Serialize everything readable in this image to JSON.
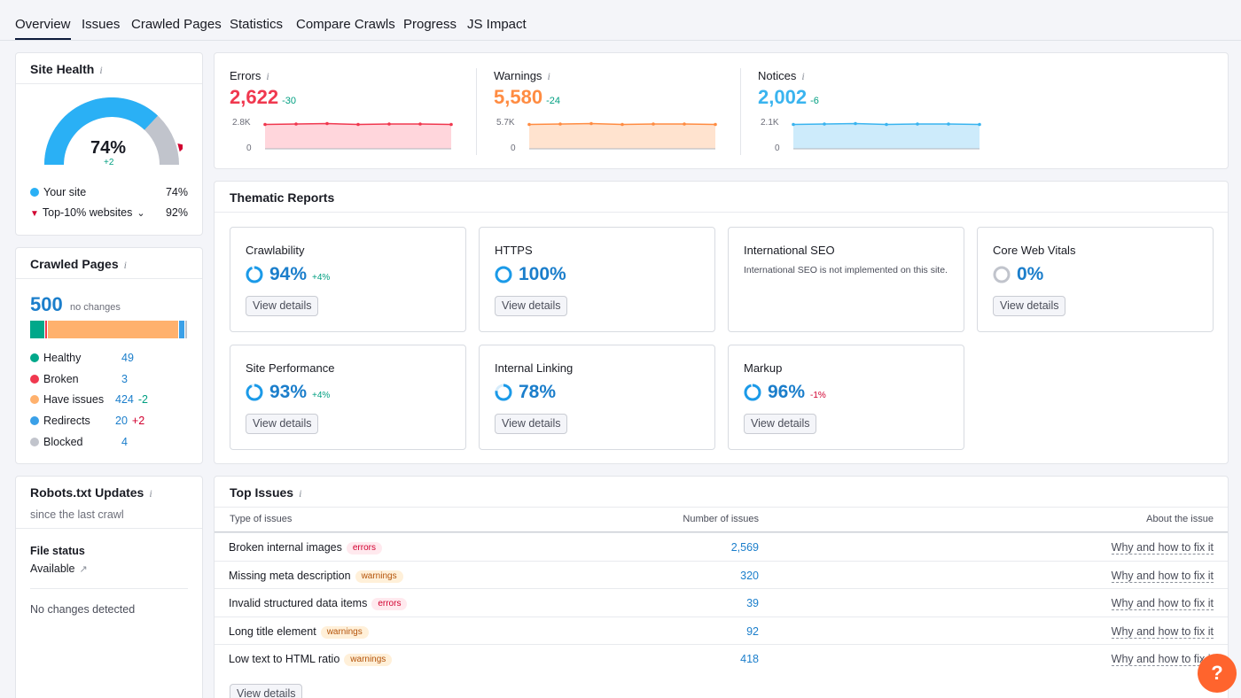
{
  "tabs": [
    "Overview",
    "Issues",
    "Crawled Pages",
    "Statistics",
    "Compare Crawls",
    "Progress",
    "JS Impact"
  ],
  "site_health": {
    "title": "Site Health",
    "percent": "74%",
    "delta": "+2",
    "gauge_value": 0.74,
    "top10_value": 0.92,
    "legend": [
      {
        "label": "Your site",
        "value": "74%"
      },
      {
        "label": "Top-10% websites",
        "value": "92%"
      }
    ]
  },
  "crawled_pages": {
    "title": "Crawled Pages",
    "total": "500",
    "note": "no changes",
    "rows": [
      {
        "label": "Healthy",
        "value": "49",
        "delta": "",
        "color": "#00a88a",
        "count": 49
      },
      {
        "label": "Broken",
        "value": "3",
        "delta": "",
        "color": "#f0384f",
        "count": 3
      },
      {
        "label": "Have issues",
        "value": "424",
        "delta": "-2",
        "color": "#ffb16d",
        "count": 424
      },
      {
        "label": "Redirects",
        "value": "20",
        "delta": "+2",
        "color": "#3aa0e8",
        "count": 20
      },
      {
        "label": "Blocked",
        "value": "4",
        "delta": "",
        "color": "#c1c4cc",
        "count": 4
      }
    ]
  },
  "robots": {
    "title": "Robots.txt Updates",
    "subtitle": "since the last crawl",
    "file_status_label": "File status",
    "file_status_value": "Available",
    "changes": "No changes detected"
  },
  "metrics": [
    {
      "label": "Errors",
      "value": "2,622",
      "delta": "-30",
      "max": "2.8K",
      "zero": "0",
      "color": "#f0384f",
      "fill": "#ffd6dc"
    },
    {
      "label": "Warnings",
      "value": "5,580",
      "delta": "-24",
      "max": "5.7K",
      "zero": "0",
      "color": "#ff8c42",
      "fill": "#ffe3cf"
    },
    {
      "label": "Notices",
      "value": "2,002",
      "delta": "-6",
      "max": "2.1K",
      "zero": "0",
      "color": "#3ab4ef",
      "fill": "#cdebfb"
    }
  ],
  "thematic": {
    "title": "Thematic Reports",
    "button_label": "View details",
    "cards": [
      {
        "title": "Crawlability",
        "pct": "94%",
        "delta": "+4%",
        "delta_color": "#009f81",
        "value": 0.94
      },
      {
        "title": "HTTPS",
        "pct": "100%",
        "delta": "",
        "delta_color": "#009f81",
        "value": 1.0
      },
      {
        "title": "International SEO",
        "text": "International SEO is not implemented on this site."
      },
      {
        "title": "Core Web Vitals",
        "pct": "0%",
        "delta": "",
        "delta_color": "#009f81",
        "value": 0.0
      },
      {
        "title": "Site Performance",
        "pct": "93%",
        "delta": "+4%",
        "delta_color": "#009f81",
        "value": 0.93
      },
      {
        "title": "Internal Linking",
        "pct": "78%",
        "delta": "",
        "delta_color": "#009f81",
        "value": 0.78
      },
      {
        "title": "Markup",
        "pct": "96%",
        "delta": "-1%",
        "delta_color": "#d1002f",
        "value": 0.96
      }
    ]
  },
  "top_issues": {
    "title": "Top Issues",
    "headers": [
      "Type of issues",
      "Number of issues",
      "About the issue"
    ],
    "rows": [
      {
        "name": "Broken internal images",
        "badge": "errors",
        "count": "2,569",
        "link": "Why and how to fix it"
      },
      {
        "name": "Missing meta description",
        "badge": "warnings",
        "count": "320",
        "link": "Why and how to fix it"
      },
      {
        "name": "Invalid structured data items",
        "badge": "errors",
        "count": "39",
        "link": "Why and how to fix it"
      },
      {
        "name": "Long title element",
        "badge": "warnings",
        "count": "92",
        "link": "Why and how to fix it"
      },
      {
        "name": "Low text to HTML ratio",
        "badge": "warnings",
        "count": "418",
        "link": "Why and how to fix it"
      }
    ],
    "button_label": "View details"
  },
  "help_label": "?"
}
